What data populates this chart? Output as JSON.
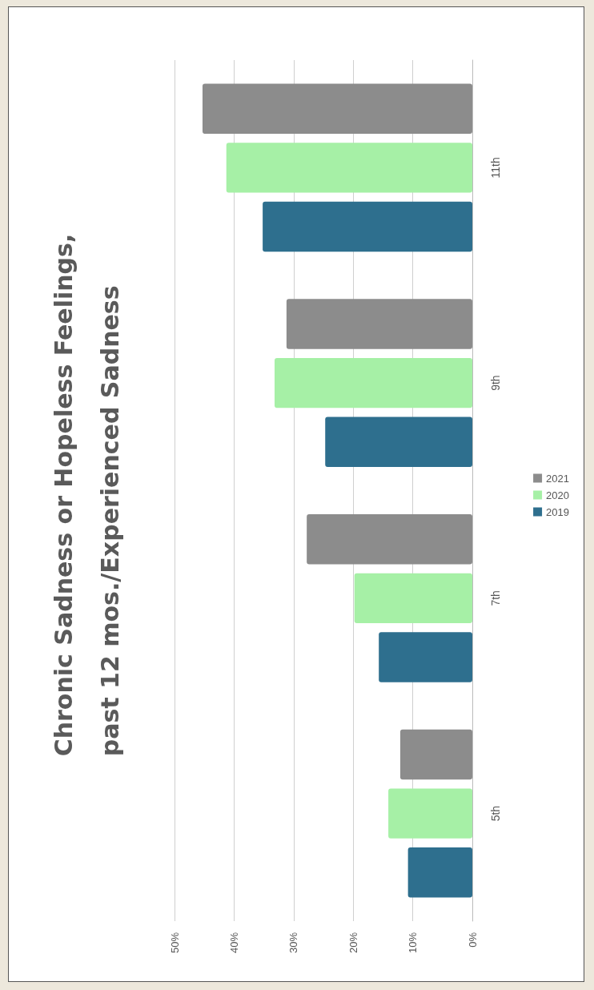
{
  "chart_data": {
    "type": "bar",
    "orientation": "horizontal",
    "title": "Chronic Sadness or Hopeless Feelings,\npast 12 mos./Experienced Sadness",
    "categories": [
      "11th",
      "9th",
      "7th",
      "5th"
    ],
    "series": [
      {
        "name": "2021",
        "color": "#8c8c8c",
        "values": [
          45.3,
          31.2,
          27.8,
          12.1
        ]
      },
      {
        "name": "2020",
        "color": "#a6f0a6",
        "values": [
          41.3,
          33.2,
          19.8,
          14.1
        ]
      },
      {
        "name": "2019",
        "color": "#2e6f8e",
        "values": [
          35.2,
          24.7,
          15.7,
          10.8
        ]
      }
    ],
    "xlim": [
      50,
      0
    ],
    "xticks": [
      {
        "value": 50,
        "label": "50%"
      },
      {
        "value": 40,
        "label": "40%"
      },
      {
        "value": 30,
        "label": "30%"
      },
      {
        "value": 20,
        "label": "20%"
      },
      {
        "value": 10,
        "label": "10%"
      },
      {
        "value": 0,
        "label": "0%"
      }
    ],
    "grid": "x",
    "legend": "right"
  }
}
